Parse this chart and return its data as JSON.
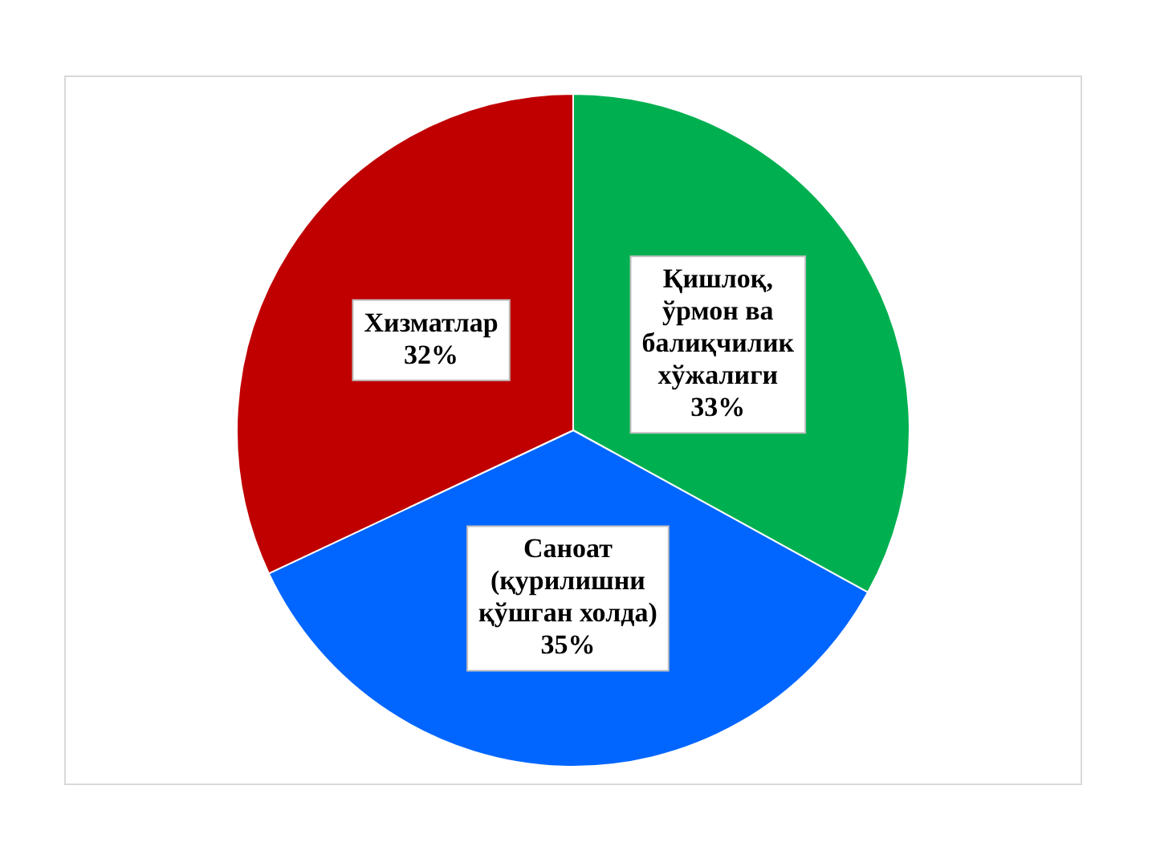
{
  "chart_data": {
    "type": "pie",
    "categories": [
      "Қишлоқ, ўрмон ва балиқчилик хўжалиги",
      "Саноат (қурилишни қўшган холда)",
      "Хизматлар"
    ],
    "values": [
      33,
      35,
      32
    ],
    "colors": [
      "#00b050",
      "#0066ff",
      "#c00000"
    ],
    "value_labels": [
      "33%",
      "35%",
      "32%"
    ],
    "legend": false
  }
}
